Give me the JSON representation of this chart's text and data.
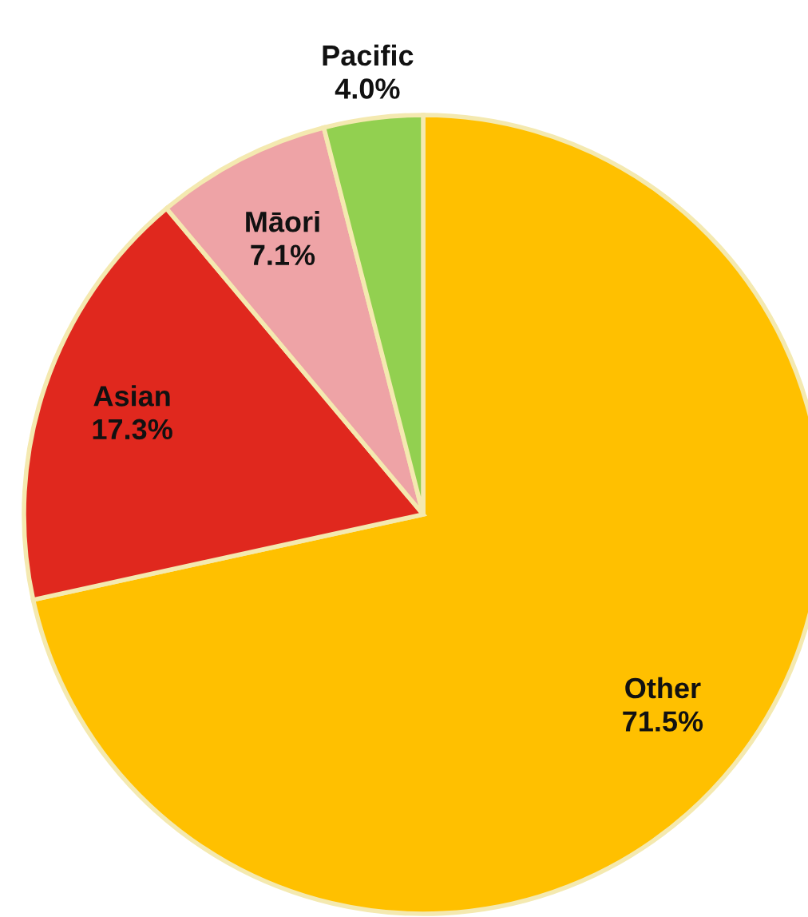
{
  "chart_data": {
    "type": "pie",
    "categories": [
      "Other",
      "Asian",
      "Māori",
      "Pacific"
    ],
    "values": [
      71.5,
      17.3,
      7.1,
      4.0
    ],
    "colors": [
      "#ffc000",
      "#e0281e",
      "#eea3a6",
      "#92d050"
    ],
    "value_labels": [
      "71.5%",
      "17.3%",
      "7.1%",
      "4.0%"
    ]
  }
}
